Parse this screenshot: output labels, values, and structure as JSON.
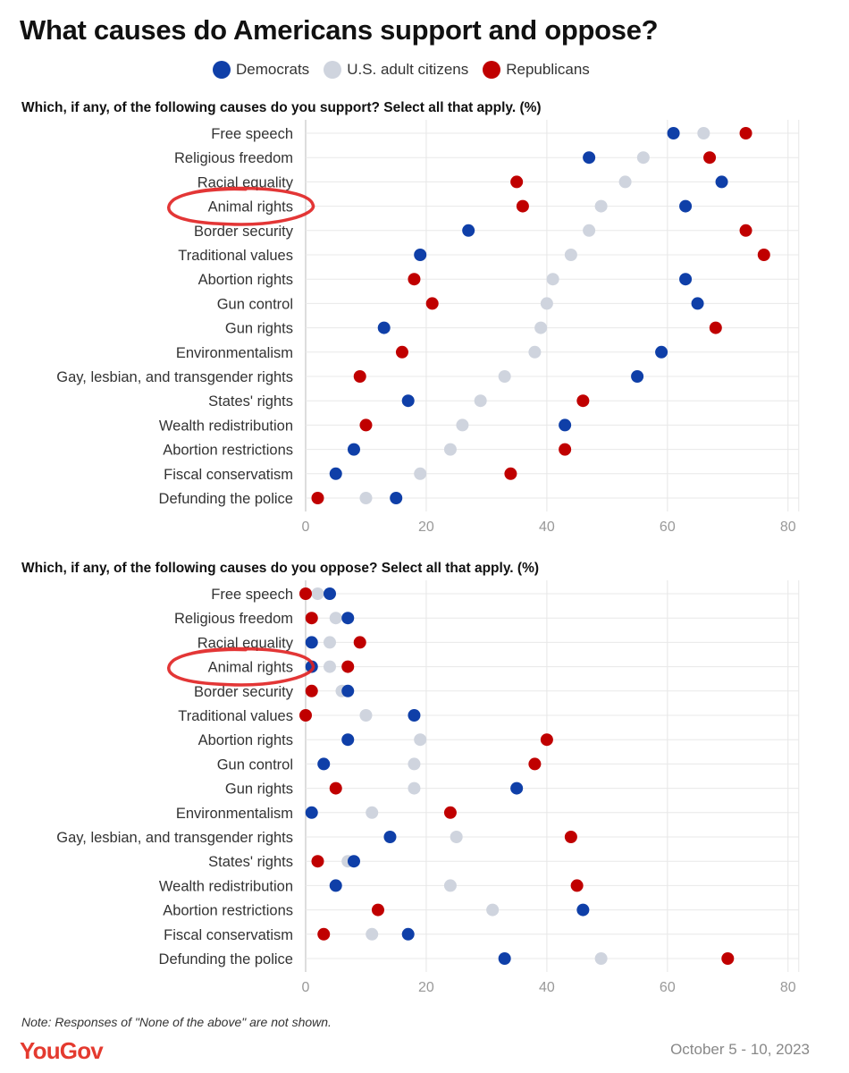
{
  "title": "What causes do Americans support and oppose?",
  "legend": [
    {
      "label": "Democrats",
      "color": "#0f3fa8"
    },
    {
      "label": "U.S. adult citizens",
      "color": "#cfd4de"
    },
    {
      "label": "Republicans",
      "color": "#c00000"
    }
  ],
  "note": "Note: Responses of \"None of the above\" are not shown.",
  "brand": "YouGov",
  "date": "October 5 - 10, 2023",
  "annotation_color": "#e02020",
  "chart_data": [
    {
      "type": "scatter",
      "title": "Which, if any, of the following causes do you support? Select all that apply. (%)",
      "xlim": [
        0,
        80
      ],
      "xticks": [
        0,
        20,
        40,
        60,
        80
      ],
      "grid": true,
      "categories": [
        "Free speech",
        "Religious freedom",
        "Racial equality",
        "Animal rights",
        "Border security",
        "Traditional values",
        "Abortion rights",
        "Gun control",
        "Gun rights",
        "Environmentalism",
        "Gay, lesbian, and transgender rights",
        "States' rights",
        "Wealth redistribution",
        "Abortion restrictions",
        "Fiscal conservatism",
        "Defunding the police"
      ],
      "circled": [
        "Animal rights"
      ],
      "series": [
        {
          "name": "Democrats",
          "color": "#0f3fa8",
          "values": [
            61,
            47,
            69,
            63,
            27,
            19,
            63,
            65,
            13,
            59,
            55,
            17,
            43,
            8,
            5,
            15
          ]
        },
        {
          "name": "U.S. adult citizens",
          "color": "#cfd4de",
          "values": [
            66,
            56,
            53,
            49,
            47,
            44,
            41,
            40,
            39,
            38,
            33,
            29,
            26,
            24,
            19,
            10
          ]
        },
        {
          "name": "Republicans",
          "color": "#c00000",
          "values": [
            73,
            67,
            35,
            36,
            73,
            76,
            18,
            21,
            68,
            16,
            9,
            46,
            10,
            43,
            34,
            2
          ]
        }
      ]
    },
    {
      "type": "scatter",
      "title": "Which, if any, of the following causes do you oppose? Select all that apply. (%)",
      "xlim": [
        0,
        80
      ],
      "xticks": [
        0,
        20,
        40,
        60,
        80
      ],
      "grid": true,
      "categories": [
        "Free speech",
        "Religious freedom",
        "Racial equality",
        "Animal rights",
        "Border security",
        "Traditional values",
        "Abortion rights",
        "Gun control",
        "Gun rights",
        "Environmentalism",
        "Gay, lesbian, and transgender rights",
        "States' rights",
        "Wealth redistribution",
        "Abortion restrictions",
        "Fiscal conservatism",
        "Defunding the police"
      ],
      "circled": [
        "Animal rights"
      ],
      "series": [
        {
          "name": "Democrats",
          "color": "#0f3fa8",
          "values": [
            4,
            7,
            1,
            1,
            7,
            18,
            7,
            3,
            35,
            1,
            14,
            8,
            5,
            46,
            17,
            33
          ]
        },
        {
          "name": "U.S. adult citizens",
          "color": "#cfd4de",
          "values": [
            2,
            5,
            4,
            4,
            6,
            10,
            19,
            18,
            18,
            11,
            25,
            7,
            24,
            31,
            11,
            49
          ]
        },
        {
          "name": "Republicans",
          "color": "#c00000",
          "values": [
            0,
            1,
            9,
            7,
            1,
            0,
            40,
            38,
            5,
            24,
            44,
            2,
            45,
            12,
            3,
            70
          ]
        }
      ]
    }
  ]
}
